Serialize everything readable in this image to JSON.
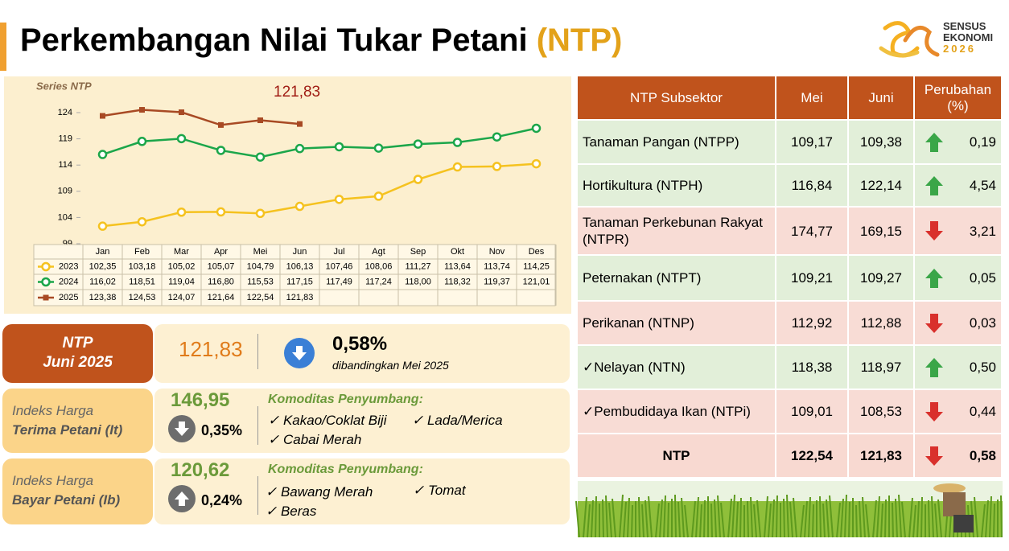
{
  "title": "Perkembangan Nilai Tukar Petani",
  "title_highlight": "(NTP)",
  "logo": {
    "line1": "SENSUS",
    "line2": "EKONOMI",
    "line3": "2026"
  },
  "chart_data": {
    "type": "line",
    "title": "Series NTP",
    "categories": [
      "Jan",
      "Feb",
      "Mar",
      "Apr",
      "Mei",
      "Jun",
      "Jul",
      "Agt",
      "Sep",
      "Okt",
      "Nov",
      "Des"
    ],
    "series": [
      {
        "name": "2023",
        "color": "#f5c21f",
        "marker": "circle",
        "values": [
          102.35,
          103.18,
          105.02,
          105.07,
          104.79,
          106.13,
          107.46,
          108.06,
          111.27,
          113.64,
          113.74,
          114.25
        ],
        "value_labels": [
          "102,35",
          "103,18",
          "105,02",
          "105,07",
          "104,79",
          "106,13",
          "107,46",
          "108,06",
          "111,27",
          "113,64",
          "113,74",
          "114,25"
        ]
      },
      {
        "name": "2024",
        "color": "#1ba64a",
        "marker": "circle",
        "values": [
          116.02,
          118.51,
          119.04,
          116.8,
          115.53,
          117.15,
          117.49,
          117.24,
          118.0,
          118.32,
          119.37,
          121.01
        ],
        "value_labels": [
          "116,02",
          "118,51",
          "119,04",
          "116,80",
          "115,53",
          "117,15",
          "117,49",
          "117,24",
          "118,00",
          "118,32",
          "119,37",
          "121,01"
        ]
      },
      {
        "name": "2025",
        "color": "#a84a24",
        "marker": "square",
        "values": [
          123.38,
          124.53,
          124.07,
          121.64,
          122.54,
          121.83,
          null,
          null,
          null,
          null,
          null,
          null
        ],
        "value_labels": [
          "123,38",
          "124,53",
          "124,07",
          "121,64",
          "122,54",
          "121,83",
          null,
          null,
          null,
          null,
          null,
          null
        ]
      }
    ],
    "ylim": [
      99,
      124
    ],
    "yticks": [
      99,
      104,
      109,
      114,
      119,
      124
    ],
    "annotation": {
      "value": 121.83,
      "label": "121,83"
    }
  },
  "summary": {
    "label_line1": "NTP",
    "label_line2": "Juni 2025",
    "value": "121,83",
    "change": "0,58%",
    "arrow": "down",
    "note": "dibandingkan Mei 2025"
  },
  "indices": [
    {
      "label_line1": "Indeks Harga",
      "label_line2": "Terima Petani (It)",
      "value": "146,95",
      "change": "0,35%",
      "arrow": "down",
      "heading": "Komoditas Penyumbang:",
      "items": [
        "✓ Kakao/Coklat Biji",
        "✓ Lada/Merica",
        "✓ Cabai Merah"
      ]
    },
    {
      "label_line1": "Indeks Harga",
      "label_line2": "Bayar Petani (Ib)",
      "value": "120,62",
      "change": "0,24%",
      "arrow": "up",
      "heading": "Komoditas Penyumbang:",
      "items": [
        "✓ Bawang Merah",
        "✓ Tomat",
        "✓ Beras"
      ]
    }
  ],
  "table": {
    "header": [
      "NTP Subsektor",
      "Mei",
      "Juni",
      "Perubahan (%)"
    ],
    "rows": [
      {
        "cells": [
          "Tanaman Pangan (NTPP)",
          "109,17",
          "109,38",
          "0,19"
        ],
        "arrow": "up"
      },
      {
        "cells": [
          "Hortikultura (NTPH)",
          "116,84",
          "122,14",
          "4,54"
        ],
        "arrow": "up"
      },
      {
        "cells": [
          "Tanaman Perkebunan Rakyat (NTPR)",
          "174,77",
          "169,15",
          "3,21"
        ],
        "arrow": "down"
      },
      {
        "cells": [
          "Peternakan (NTPT)",
          "109,21",
          "109,27",
          "0,05"
        ],
        "arrow": "up"
      },
      {
        "cells": [
          "Perikanan (NTNP)",
          "112,92",
          "112,88",
          "0,03"
        ],
        "arrow": "down"
      },
      {
        "cells": [
          "✓Nelayan (NTN)",
          "118,38",
          "118,97",
          "0,50"
        ],
        "arrow": "up"
      },
      {
        "cells": [
          "✓Pembudidaya Ikan (NTPi)",
          "109,01",
          "108,53",
          "0,44"
        ],
        "arrow": "down"
      }
    ],
    "total_row": {
      "cells": [
        "NTP",
        "122,54",
        "121,83",
        "0,58"
      ],
      "arrow": "down"
    }
  }
}
